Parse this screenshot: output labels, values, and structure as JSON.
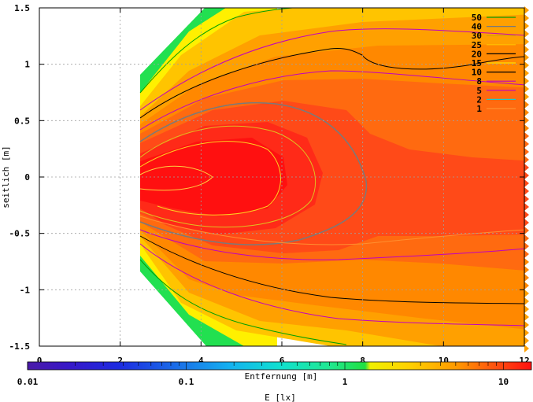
{
  "chart_data": {
    "type": "heatmap",
    "xlabel": "Entfernung [m]",
    "ylabel": "seitlich [m]",
    "xlim": [
      0,
      12
    ],
    "ylim": [
      -1.5,
      1.5
    ],
    "x_ticks": [
      "0",
      "2",
      "4",
      "6",
      "8",
      "10",
      "12"
    ],
    "y_ticks": [
      "1.5",
      "1",
      "0.5",
      "0",
      "-0.5",
      "-1",
      "-1.5"
    ],
    "grid": true,
    "legend_position": "top-right",
    "legend": [
      {
        "label": "50",
        "color": "#00a000"
      },
      {
        "label": "40",
        "color": "#7a7a7a"
      },
      {
        "label": "30",
        "color": "#d4a000"
      },
      {
        "label": "25",
        "color": "#ffc000"
      },
      {
        "label": "20",
        "color": "#000000"
      },
      {
        "label": "15",
        "color": "#ffe000"
      },
      {
        "label": "10",
        "color": "#000000"
      },
      {
        "label": "8",
        "color": "#c000c0"
      },
      {
        "label": "5",
        "color": "#c000c0"
      },
      {
        "label": "2",
        "color": "#1ec8c8"
      },
      {
        "label": "1",
        "color": "#ff9030"
      }
    ],
    "colorbar": {
      "label": "E [lx]",
      "scale": "log",
      "range": [
        0.01,
        15
      ],
      "tick_labels": [
        "0.01",
        "0.1",
        "1",
        "10"
      ]
    }
  }
}
